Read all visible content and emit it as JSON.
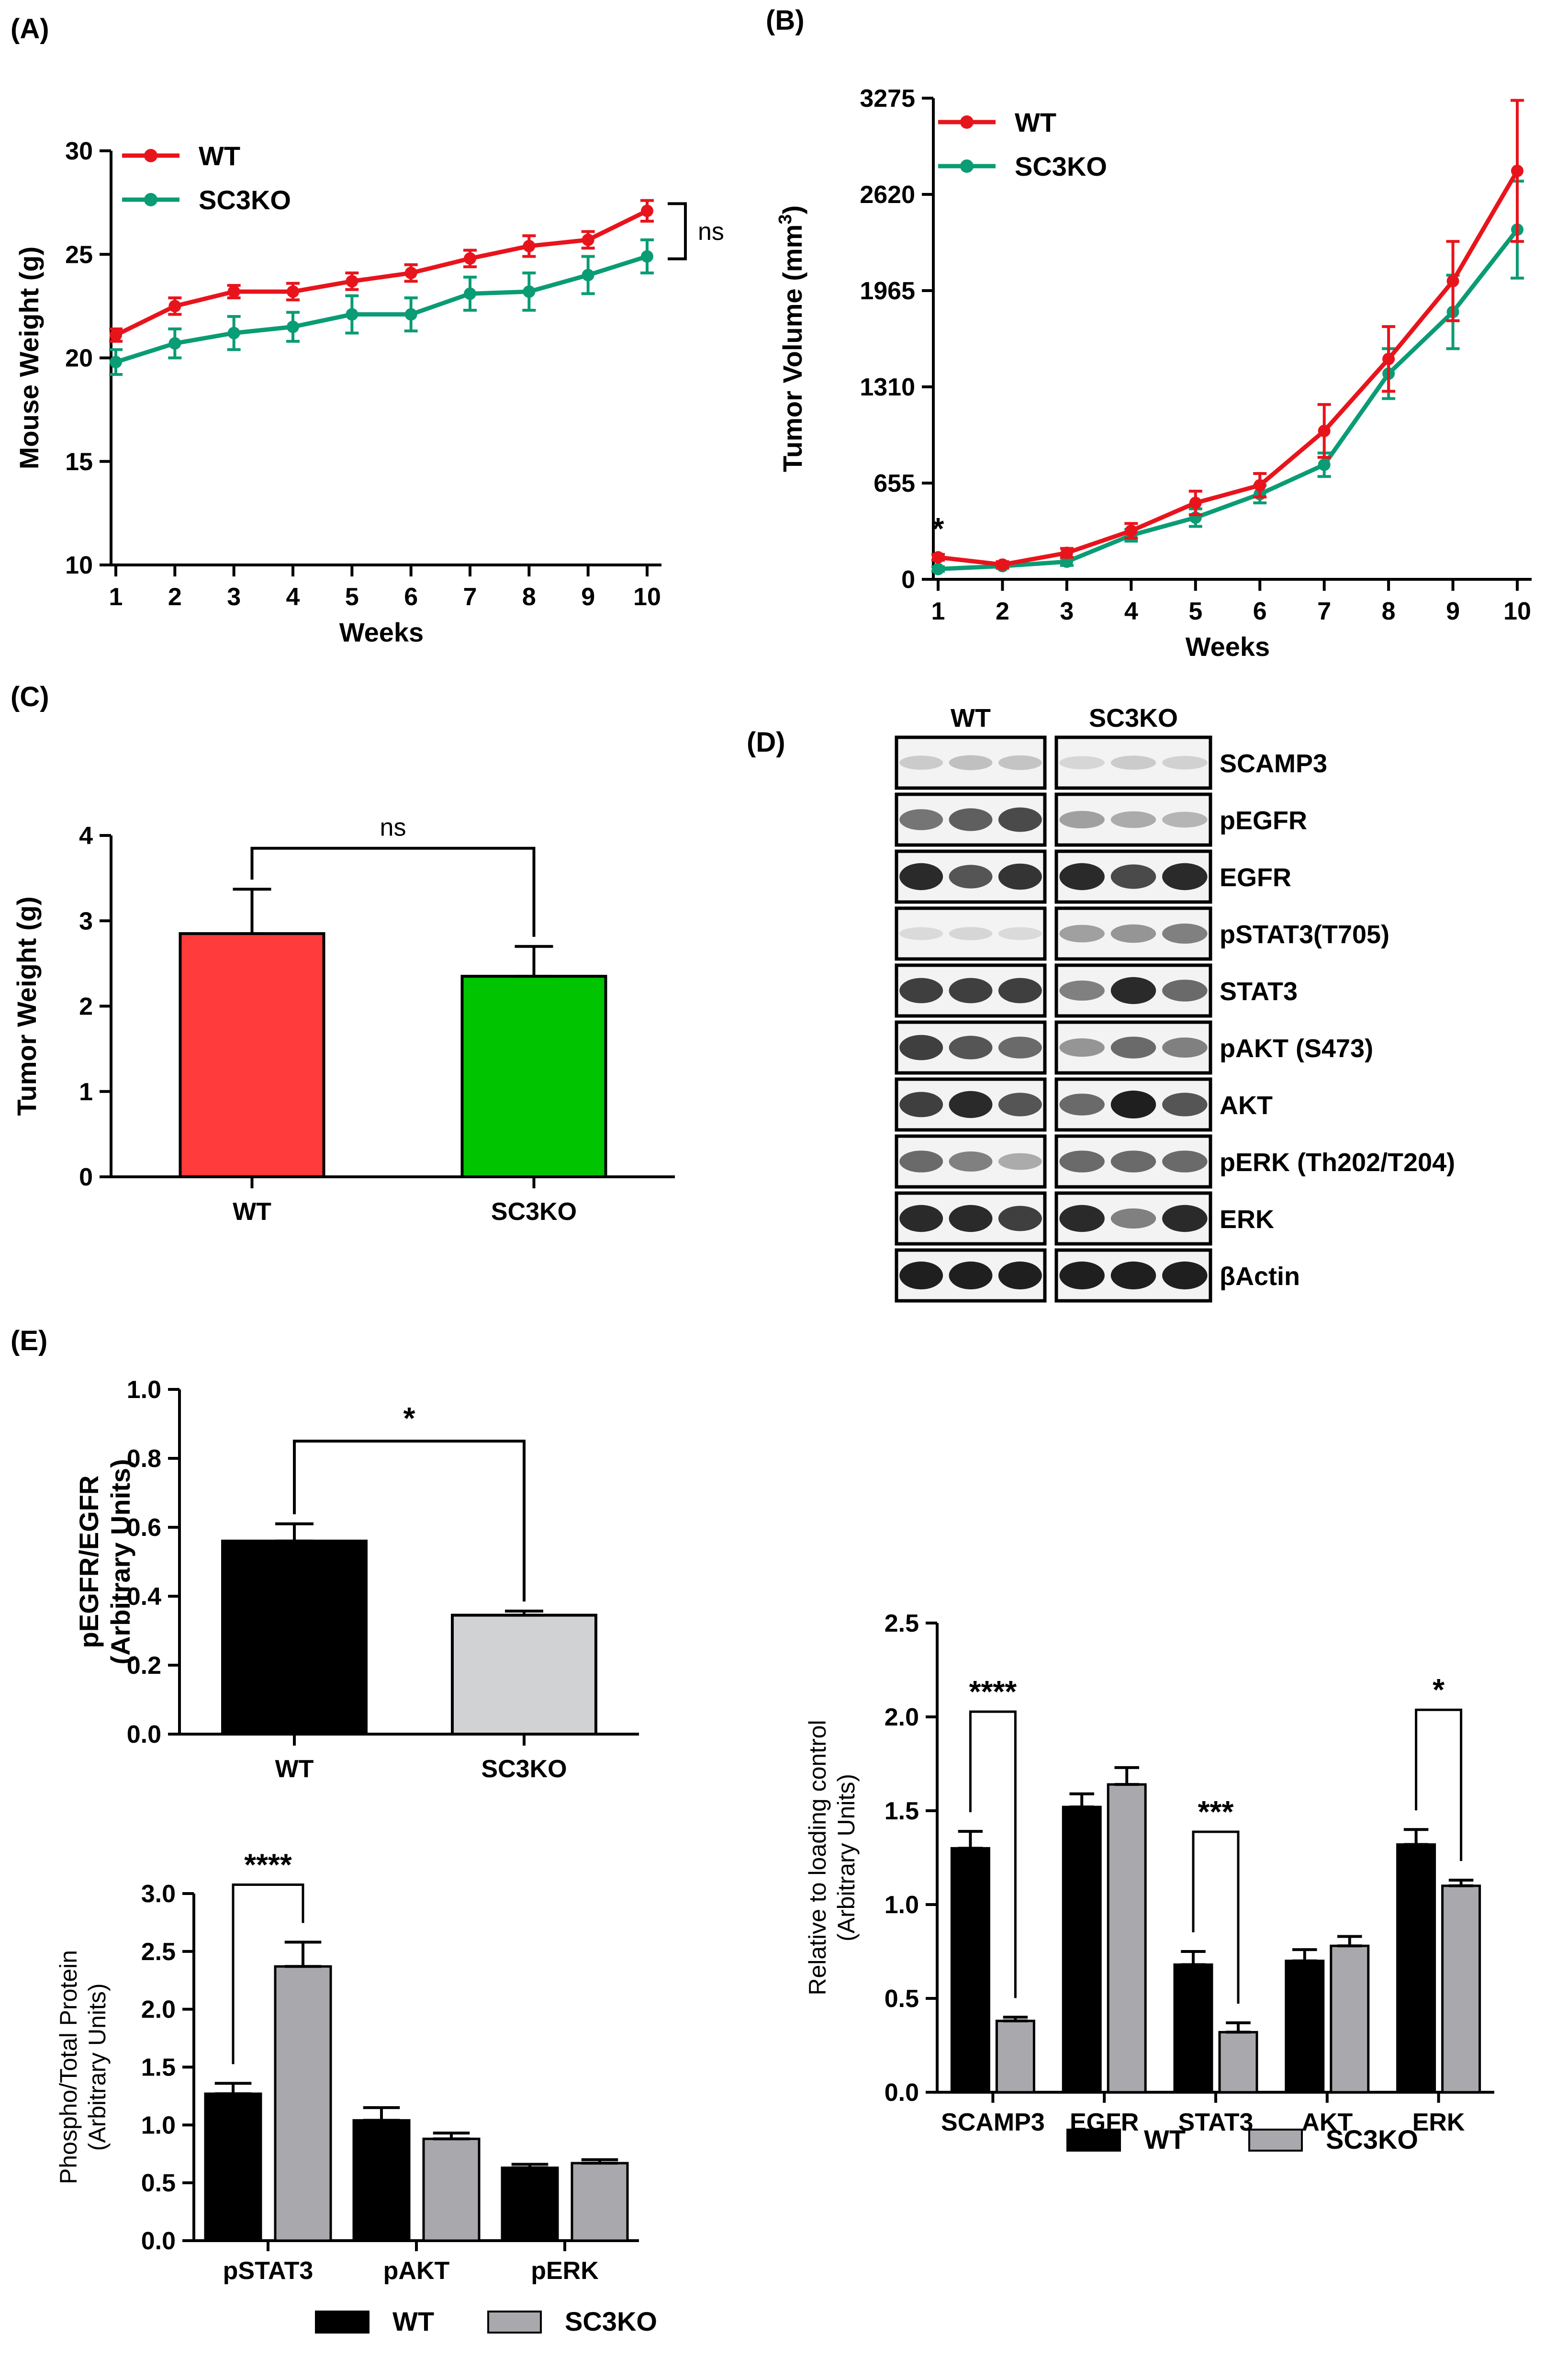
{
  "panels": {
    "a": "(A)",
    "b": "(B)",
    "c": "(C)",
    "d": "(D)",
    "e": "(E)"
  },
  "chart_data": [
    {
      "id": "A",
      "type": "line",
      "xlabel": "Weeks",
      "ylabel": "Mouse Weight (g)",
      "x": [
        1,
        2,
        3,
        4,
        5,
        6,
        7,
        8,
        9,
        10
      ],
      "xticks": [
        "1",
        "2",
        "3",
        "4",
        "5",
        "6",
        "7",
        "8",
        "9",
        "10"
      ],
      "ylim": [
        10,
        30
      ],
      "yticks": [
        "10",
        "15",
        "20",
        "25",
        "30"
      ],
      "annotation": "ns",
      "series": [
        {
          "name": "WT",
          "color": "#e8141c",
          "values": [
            21.1,
            22.5,
            23.2,
            23.2,
            23.7,
            24.1,
            24.8,
            25.4,
            25.7,
            27.1
          ],
          "err": [
            0.3,
            0.4,
            0.3,
            0.4,
            0.4,
            0.4,
            0.4,
            0.5,
            0.4,
            0.5
          ]
        },
        {
          "name": "SC3KO",
          "color": "#0a9c74",
          "values": [
            19.8,
            20.7,
            21.2,
            21.5,
            22.1,
            22.1,
            23.1,
            23.2,
            24.0,
            24.9
          ],
          "err": [
            0.6,
            0.7,
            0.8,
            0.7,
            0.9,
            0.8,
            0.8,
            0.9,
            0.9,
            0.8
          ]
        }
      ]
    },
    {
      "id": "B",
      "type": "line",
      "xlabel": "Weeks",
      "ylabel_main": "Tumor Volume (mm",
      "ylabel_sup": "3",
      "ylabel_end": ")",
      "x": [
        1,
        2,
        3,
        4,
        5,
        6,
        7,
        8,
        9,
        10
      ],
      "xticks": [
        "1",
        "2",
        "3",
        "4",
        "5",
        "6",
        "7",
        "8",
        "9",
        "10"
      ],
      "ylim": [
        0,
        3275
      ],
      "yticks": [
        "0",
        "655",
        "1310",
        "1965",
        "2620",
        "3275"
      ],
      "annotation": "*",
      "series": [
        {
          "name": "WT",
          "color": "#e8141c",
          "values": [
            150,
            100,
            180,
            330,
            520,
            640,
            1010,
            1500,
            2030,
            2780
          ],
          "err": [
            20,
            20,
            30,
            50,
            80,
            80,
            180,
            220,
            270,
            480
          ]
        },
        {
          "name": "SC3KO",
          "color": "#0a9c74",
          "values": [
            70,
            90,
            120,
            300,
            420,
            580,
            780,
            1400,
            1820,
            2380
          ],
          "err": [
            15,
            15,
            25,
            40,
            60,
            60,
            80,
            170,
            250,
            330
          ]
        }
      ]
    },
    {
      "id": "C",
      "type": "bar",
      "ylabel": "Tumor Weight (g)",
      "categories": [
        "WT",
        "SC3KO"
      ],
      "values": [
        2.85,
        2.35
      ],
      "err": [
        0.52,
        0.35
      ],
      "colors": [
        "#ff3b3b",
        "#00c400"
      ],
      "ylim": [
        0,
        4
      ],
      "yticks": [
        "0",
        "1",
        "2",
        "3",
        "4"
      ],
      "annotation": "ns"
    },
    {
      "id": "E1",
      "type": "bar",
      "ylabel_line1": "pEGFR/EGFR",
      "ylabel_line2": "(Arbitrary Units)",
      "categories": [
        "WT",
        "SC3KO"
      ],
      "values": [
        0.56,
        0.345
      ],
      "err": [
        0.05,
        0.012
      ],
      "colors": [
        "#000000",
        "#d1d2d4"
      ],
      "ylim": [
        0,
        1.0
      ],
      "yticks": [
        "0.0",
        "0.2",
        "0.4",
        "0.6",
        "0.8",
        "1.0"
      ],
      "annotation": "*"
    },
    {
      "id": "E2",
      "type": "bar",
      "ylabel_line1": "Relative to loading control",
      "ylabel_line2": "(Arbitrary Units)",
      "categories": [
        "SCAMP3",
        "EGFR",
        "STAT3",
        "AKT",
        "ERK"
      ],
      "series": [
        {
          "name": "WT",
          "color": "#000000",
          "values": [
            1.3,
            1.52,
            0.68,
            0.7,
            1.32
          ],
          "err": [
            0.09,
            0.07,
            0.07,
            0.06,
            0.08
          ]
        },
        {
          "name": "SC3KO",
          "color": "#a8a8ad",
          "values": [
            0.38,
            1.64,
            0.32,
            0.78,
            1.1
          ],
          "err": [
            0.02,
            0.09,
            0.05,
            0.05,
            0.03
          ]
        }
      ],
      "ylim": [
        0,
        2.5
      ],
      "yticks": [
        "0.0",
        "0.5",
        "1.0",
        "1.5",
        "2.0",
        "2.5"
      ],
      "annotations": [
        {
          "category": "SCAMP3",
          "text": "****"
        },
        {
          "category": "STAT3",
          "text": "***"
        },
        {
          "category": "ERK",
          "text": "*"
        }
      ]
    },
    {
      "id": "E3",
      "type": "bar",
      "ylabel_line1": "Phospho/Total Protein",
      "ylabel_line2": "(Arbitrary Units)",
      "categories": [
        "pSTAT3",
        "pAKT",
        "pERK"
      ],
      "series": [
        {
          "name": "WT",
          "color": "#000000",
          "values": [
            1.27,
            1.04,
            0.63
          ],
          "err": [
            0.09,
            0.11,
            0.03
          ]
        },
        {
          "name": "SC3KO",
          "color": "#a8a8ad",
          "values": [
            2.37,
            0.88,
            0.67
          ],
          "err": [
            0.21,
            0.05,
            0.03
          ]
        }
      ],
      "ylim": [
        0,
        3.0
      ],
      "yticks": [
        "0.0",
        "0.5",
        "1.0",
        "1.5",
        "2.0",
        "2.5",
        "3.0"
      ],
      "annotations": [
        {
          "category": "pSTAT3",
          "text": "****"
        }
      ]
    }
  ],
  "blot": {
    "groups": [
      "WT",
      "SC3KO"
    ],
    "rows": [
      {
        "label": "SCAMP3",
        "wt": [
          0.15,
          0.2,
          0.18
        ],
        "ko": [
          0.1,
          0.15,
          0.12
        ]
      },
      {
        "label": "pEGFR",
        "wt": [
          0.55,
          0.65,
          0.75
        ],
        "ko": [
          0.35,
          0.3,
          0.25
        ]
      },
      {
        "label": "EGFR",
        "wt": [
          0.9,
          0.7,
          0.85
        ],
        "ko": [
          0.9,
          0.75,
          0.9
        ]
      },
      {
        "label": "pSTAT3(T705)",
        "wt": [
          0.08,
          0.1,
          0.08
        ],
        "ko": [
          0.35,
          0.4,
          0.5
        ]
      },
      {
        "label": "STAT3",
        "wt": [
          0.8,
          0.8,
          0.8
        ],
        "ko": [
          0.5,
          0.9,
          0.6
        ]
      },
      {
        "label": "pAKT (S473)",
        "wt": [
          0.8,
          0.7,
          0.6
        ],
        "ko": [
          0.4,
          0.6,
          0.5
        ]
      },
      {
        "label": "AKT",
        "wt": [
          0.8,
          0.9,
          0.7
        ],
        "ko": [
          0.6,
          0.95,
          0.7
        ]
      },
      {
        "label": "pERK (Th202/T204)",
        "wt": [
          0.6,
          0.5,
          0.3
        ],
        "ko": [
          0.6,
          0.6,
          0.6
        ]
      },
      {
        "label": "ERK",
        "wt": [
          0.9,
          0.9,
          0.8
        ],
        "ko": [
          0.9,
          0.5,
          0.9
        ]
      },
      {
        "label": "βActin",
        "wt": [
          0.95,
          0.95,
          0.95
        ],
        "ko": [
          0.95,
          0.95,
          0.95
        ]
      }
    ]
  }
}
